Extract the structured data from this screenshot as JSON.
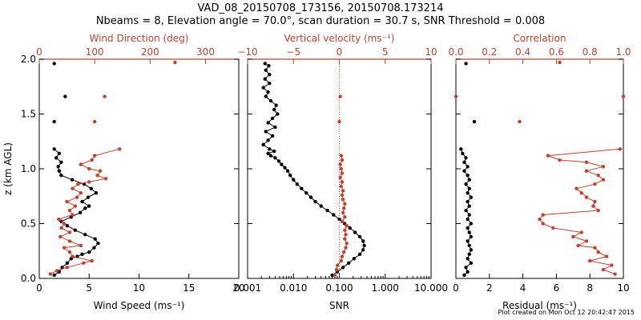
{
  "title_line1": "VAD_08_20150708_173156, 20150708.173214",
  "title_line2": "Nbeams = 8, Elevation angle = 70.0°, scan duration = 30.7 s, SNR Threshold = 0.008",
  "footer": "Plot created on Mon Oct 12 20:42:47 2015",
  "colors": {
    "black": "#000000",
    "red": "#c0392b"
  },
  "chart_data": [
    {
      "type": "line",
      "name": "wind-panel",
      "xlabel": "Wind Speed (ms⁻¹)",
      "ylabel": "z (km AGL)",
      "top_xlabel": "Wind Direction (deg)",
      "xlim": [
        0,
        20
      ],
      "top_xlim": [
        0,
        360
      ],
      "ylim": [
        0,
        2
      ],
      "xticks": [
        "0",
        "5",
        "10",
        "15",
        "20"
      ],
      "top_xticks": [
        "0",
        "100",
        "200",
        "300"
      ],
      "yticks": [
        "0.0",
        "0.5",
        "1.0",
        "1.5",
        "2.0"
      ],
      "series": [
        {
          "name": "Wind Speed",
          "color": "black",
          "points": [
            [
              1.5,
              0.03
            ],
            [
              2.0,
              0.06
            ],
            [
              2.3,
              0.1
            ],
            [
              2.8,
              0.14
            ],
            [
              3.2,
              0.18
            ],
            [
              3.8,
              0.2
            ],
            [
              4.3,
              0.22
            ],
            [
              5.0,
              0.24
            ],
            [
              5.5,
              0.28
            ],
            [
              5.9,
              0.32
            ],
            [
              5.6,
              0.36
            ],
            [
              4.6,
              0.4
            ],
            [
              3.6,
              0.44
            ],
            [
              2.8,
              0.48
            ],
            [
              2.2,
              0.52
            ],
            [
              3.2,
              0.56
            ],
            [
              4.1,
              0.6
            ],
            [
              4.6,
              0.64
            ],
            [
              5.0,
              0.66
            ],
            [
              4.3,
              0.7
            ],
            [
              4.9,
              0.74
            ],
            [
              5.7,
              0.78
            ],
            [
              5.2,
              0.82
            ],
            [
              4.5,
              0.86
            ],
            [
              3.3,
              0.9
            ],
            [
              2.2,
              0.94
            ],
            [
              2.0,
              0.98
            ],
            [
              1.9,
              1.02
            ],
            [
              2.2,
              1.06
            ],
            [
              1.7,
              1.1
            ],
            [
              2.0,
              1.14
            ],
            [
              1.5,
              1.18
            ]
          ],
          "isolated": [
            [
              1.5,
              1.96
            ],
            [
              2.6,
              1.66
            ],
            [
              1.5,
              1.43
            ]
          ]
        },
        {
          "name": "Wind Direction",
          "color": "red",
          "axis": "top",
          "points": [
            [
              20,
              0.04
            ],
            [
              32,
              0.07
            ],
            [
              50,
              0.1
            ],
            [
              80,
              0.14
            ],
            [
              95,
              0.16
            ],
            [
              60,
              0.2
            ],
            [
              55,
              0.24
            ],
            [
              45,
              0.28
            ],
            [
              75,
              0.3
            ],
            [
              55,
              0.34
            ],
            [
              38,
              0.38
            ],
            [
              55,
              0.42
            ],
            [
              40,
              0.46
            ],
            [
              45,
              0.5
            ],
            [
              35,
              0.54
            ],
            [
              60,
              0.58
            ],
            [
              55,
              0.62
            ],
            [
              65,
              0.66
            ],
            [
              50,
              0.7
            ],
            [
              68,
              0.74
            ],
            [
              75,
              0.78
            ],
            [
              60,
              0.82
            ],
            [
              70,
              0.86
            ],
            [
              90,
              0.88
            ],
            [
              120,
              0.91
            ],
            [
              105,
              0.94
            ],
            [
              110,
              0.98
            ],
            [
              90,
              1.0
            ],
            [
              75,
              1.04
            ],
            [
              95,
              1.08
            ],
            [
              100,
              1.12
            ],
            [
              145,
              1.18
            ]
          ],
          "isolated": [
            [
              245,
              1.97
            ],
            [
              118,
              1.66
            ],
            [
              100,
              1.43
            ]
          ]
        }
      ]
    },
    {
      "type": "line",
      "name": "snr-panel",
      "xlabel": "SNR",
      "top_xlabel": "Vertical velocity (ms⁻¹)",
      "xscale": "log",
      "xlim": [
        0.001,
        10
      ],
      "top_xlim": [
        -10,
        10
      ],
      "ylim": [
        0,
        2
      ],
      "xticks": [
        "0.001",
        "0.010",
        "0.100",
        "1.000",
        "10.000"
      ],
      "top_xticks": [
        "−10",
        "−5",
        "0",
        "5",
        "10"
      ],
      "series": [
        {
          "name": "SNR",
          "color": "black",
          "points": [
            [
              0.07,
              0.03
            ],
            [
              0.09,
              0.06
            ],
            [
              0.12,
              0.1
            ],
            [
              0.16,
              0.14
            ],
            [
              0.21,
              0.18
            ],
            [
              0.28,
              0.22
            ],
            [
              0.33,
              0.26
            ],
            [
              0.35,
              0.3
            ],
            [
              0.33,
              0.34
            ],
            [
              0.28,
              0.38
            ],
            [
              0.22,
              0.42
            ],
            [
              0.17,
              0.46
            ],
            [
              0.13,
              0.5
            ],
            [
              0.1,
              0.54
            ],
            [
              0.075,
              0.58
            ],
            [
              0.055,
              0.62
            ],
            [
              0.04,
              0.66
            ],
            [
              0.03,
              0.7
            ],
            [
              0.024,
              0.74
            ],
            [
              0.019,
              0.78
            ],
            [
              0.015,
              0.82
            ],
            [
              0.012,
              0.86
            ],
            [
              0.01,
              0.9
            ],
            [
              0.0085,
              0.94
            ],
            [
              0.0075,
              0.98
            ],
            [
              0.0065,
              1.01
            ],
            [
              0.0055,
              1.04
            ],
            [
              0.0048,
              1.07
            ],
            [
              0.004,
              1.1
            ],
            [
              0.0032,
              1.12
            ],
            [
              0.0028,
              1.14
            ],
            [
              0.0038,
              1.16
            ],
            [
              0.003,
              1.18
            ],
            [
              0.0022,
              1.22
            ],
            [
              0.0028,
              1.26
            ],
            [
              0.0035,
              1.3
            ],
            [
              0.0025,
              1.34
            ],
            [
              0.004,
              1.38
            ],
            [
              0.0028,
              1.42
            ],
            [
              0.0035,
              1.46
            ],
            [
              0.0045,
              1.5
            ],
            [
              0.0038,
              1.54
            ],
            [
              0.0042,
              1.58
            ],
            [
              0.0032,
              1.62
            ],
            [
              0.0025,
              1.66
            ],
            [
              0.0028,
              1.7
            ],
            [
              0.0022,
              1.74
            ],
            [
              0.003,
              1.78
            ],
            [
              0.0024,
              1.82
            ],
            [
              0.003,
              1.86
            ],
            [
              0.0025,
              1.9
            ],
            [
              0.0029,
              1.94
            ],
            [
              0.0024,
              1.96
            ]
          ]
        },
        {
          "name": "Vertical velocity",
          "color": "red",
          "axis": "top",
          "zero_line": 0,
          "points": [
            [
              -0.5,
              0.03
            ],
            [
              -0.3,
              0.08
            ],
            [
              -0.2,
              0.12
            ],
            [
              0.2,
              0.16
            ],
            [
              0.3,
              0.2
            ],
            [
              0.5,
              0.24
            ],
            [
              0.7,
              0.28
            ],
            [
              0.8,
              0.32
            ],
            [
              0.6,
              0.36
            ],
            [
              0.7,
              0.4
            ],
            [
              0.6,
              0.44
            ],
            [
              0.8,
              0.48
            ],
            [
              0.3,
              0.52
            ],
            [
              0.6,
              0.56
            ],
            [
              0.4,
              0.6
            ],
            [
              0.5,
              0.64
            ],
            [
              0.6,
              0.68
            ],
            [
              0.4,
              0.72
            ],
            [
              0.3,
              0.76
            ],
            [
              0.4,
              0.8
            ],
            [
              0.2,
              0.84
            ],
            [
              0.3,
              0.88
            ],
            [
              0.1,
              0.92
            ],
            [
              0.3,
              0.96
            ],
            [
              0.2,
              1.0
            ],
            [
              0.1,
              1.04
            ],
            [
              0.3,
              1.08
            ],
            [
              0.2,
              1.12
            ]
          ],
          "isolated": [
            [
              0.1,
              1.66
            ],
            [
              0.0,
              1.43
            ]
          ]
        }
      ]
    },
    {
      "type": "line",
      "name": "residual-panel",
      "xlabel": "Residual (ms⁻¹)",
      "top_xlabel": "Correlation",
      "xlim": [
        0,
        10
      ],
      "top_xlim": [
        0,
        1
      ],
      "ylim": [
        0,
        2
      ],
      "xticks": [
        "0",
        "2",
        "4",
        "6",
        "8",
        "10"
      ],
      "top_xticks": [
        "0.0",
        "0.2",
        "0.4",
        "0.6",
        "0.8",
        "1.0"
      ],
      "series": [
        {
          "name": "Residual",
          "color": "black",
          "points": [
            [
              0.5,
              0.03
            ],
            [
              0.7,
              0.06
            ],
            [
              0.6,
              0.1
            ],
            [
              0.9,
              0.14
            ],
            [
              0.7,
              0.18
            ],
            [
              0.8,
              0.22
            ],
            [
              0.9,
              0.26
            ],
            [
              0.8,
              0.3
            ],
            [
              0.7,
              0.34
            ],
            [
              0.9,
              0.38
            ],
            [
              0.8,
              0.42
            ],
            [
              0.7,
              0.46
            ],
            [
              0.9,
              0.5
            ],
            [
              0.7,
              0.54
            ],
            [
              0.8,
              0.58
            ],
            [
              0.6,
              0.62
            ],
            [
              0.8,
              0.66
            ],
            [
              0.7,
              0.7
            ],
            [
              0.9,
              0.74
            ],
            [
              0.7,
              0.78
            ],
            [
              0.8,
              0.82
            ],
            [
              0.6,
              0.86
            ],
            [
              0.8,
              0.9
            ],
            [
              0.7,
              0.94
            ],
            [
              0.5,
              0.98
            ],
            [
              0.7,
              1.02
            ],
            [
              0.5,
              1.06
            ],
            [
              0.6,
              1.1
            ],
            [
              0.4,
              1.14
            ],
            [
              0.3,
              1.18
            ]
          ],
          "isolated": [
            [
              0.6,
              1.96
            ],
            [
              1.1,
              1.43
            ]
          ]
        },
        {
          "name": "Correlation",
          "color": "red",
          "axis": "top",
          "points": [
            [
              0.95,
              0.04
            ],
            [
              0.88,
              0.08
            ],
            [
              0.93,
              0.12
            ],
            [
              0.8,
              0.16
            ],
            [
              0.9,
              0.2
            ],
            [
              0.85,
              0.24
            ],
            [
              0.83,
              0.28
            ],
            [
              0.73,
              0.3
            ],
            [
              0.78,
              0.34
            ],
            [
              0.7,
              0.38
            ],
            [
              0.75,
              0.42
            ],
            [
              0.58,
              0.46
            ],
            [
              0.52,
              0.5
            ],
            [
              0.5,
              0.54
            ],
            [
              0.52,
              0.58
            ],
            [
              0.85,
              0.62
            ],
            [
              0.82,
              0.66
            ],
            [
              0.83,
              0.7
            ],
            [
              0.78,
              0.74
            ],
            [
              0.75,
              0.78
            ],
            [
              0.72,
              0.82
            ],
            [
              0.83,
              0.86
            ],
            [
              0.88,
              0.9
            ],
            [
              0.85,
              0.94
            ],
            [
              0.78,
              0.98
            ],
            [
              0.88,
              1.02
            ],
            [
              0.78,
              1.06
            ],
            [
              0.62,
              1.08
            ],
            [
              0.55,
              1.12
            ],
            [
              0.98,
              1.18
            ]
          ],
          "isolated": [
            [
              0.62,
              1.97
            ],
            [
              0.38,
              1.43
            ],
            [
              1.0,
              1.66
            ],
            [
              0.0,
              1.66
            ]
          ]
        }
      ]
    }
  ]
}
